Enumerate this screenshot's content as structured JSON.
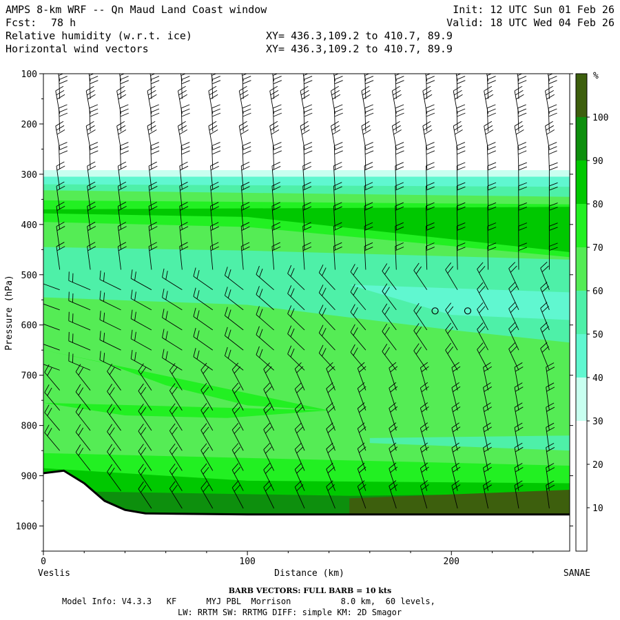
{
  "header": {
    "title": "AMPS 8-km WRF -- Qn Maud Land Coast window",
    "fcst_label": "Fcst:",
    "fcst_value": "78 h",
    "init": "Init: 12 UTC Sun 01 Feb 26",
    "valid": "Valid: 18 UTC Wed 04 Feb 26",
    "field1": "Relative humidity (w.r.t. ice)",
    "field2": "Horizontal wind vectors",
    "xy1": "XY= 436.3,109.2 to 410.7, 89.9",
    "xy2": "XY= 436.3,109.2 to 410.7, 89.9"
  },
  "footer": {
    "barb_note": "BARB VECTORS:  FULL BARB = 10 kts",
    "model_line1": "Model Info: V4.3.3   KF      MYJ PBL  Morrison          8.0 km,  60 levels,",
    "model_line2": "LW: RRTM SW: RRTMG   DIFF: simple KM: 2D Smagor"
  },
  "chart_data": {
    "type": "cross-section contour (filled) with wind barbs",
    "title": "Relative humidity (w.r.t. ice); Horizontal wind vectors",
    "xlabel": "Distance (km)",
    "ylabel": "Pressure (hPa)",
    "xlim": [
      0,
      258
    ],
    "ylim": [
      1050,
      100
    ],
    "x_ticks": [
      0,
      100,
      200
    ],
    "y_ticks": [
      100,
      200,
      300,
      400,
      500,
      600,
      700,
      800,
      900,
      1000
    ],
    "x_endpoints": {
      "left": "Veslis",
      "right": "SANAE"
    },
    "colorbar": {
      "unit": "%",
      "ticks": [
        10,
        20,
        30,
        40,
        50,
        60,
        70,
        80,
        90,
        100
      ],
      "bins": [
        {
          "min": 0,
          "max": 30,
          "color": "#ffffff"
        },
        {
          "min": 30,
          "max": 40,
          "color": "#c8fff0"
        },
        {
          "min": 40,
          "max": 50,
          "color": "#60f7d0"
        },
        {
          "min": 50,
          "max": 60,
          "color": "#4ef0a8"
        },
        {
          "min": 60,
          "max": 70,
          "color": "#55ec55"
        },
        {
          "min": 70,
          "max": 80,
          "color": "#22f022"
        },
        {
          "min": 80,
          "max": 90,
          "color": "#00c800"
        },
        {
          "min": 90,
          "max": 100,
          "color": "#0d8f0d"
        },
        {
          "min": 100,
          "max": 110,
          "color": "#3d5f0d"
        }
      ]
    },
    "terrain_pressure_hpa": [
      {
        "km": 0,
        "p": 895
      },
      {
        "km": 10,
        "p": 890
      },
      {
        "km": 20,
        "p": 915
      },
      {
        "km": 30,
        "p": 950
      },
      {
        "km": 40,
        "p": 968
      },
      {
        "km": 50,
        "p": 975
      },
      {
        "km": 100,
        "p": 977
      },
      {
        "km": 258,
        "p": 977
      }
    ],
    "rh_layers": [
      {
        "rh": 35,
        "top": [
          {
            "km": 0,
            "p": 292
          },
          {
            "km": 258,
            "p": 292
          }
        ],
        "bottom": [
          {
            "km": 0,
            "p": 1050
          },
          {
            "km": 258,
            "p": 1050
          }
        ]
      },
      {
        "rh": 45,
        "top": [
          {
            "km": 0,
            "p": 305
          },
          {
            "km": 258,
            "p": 305
          }
        ],
        "bottom": [
          {
            "km": 0,
            "p": 1050
          },
          {
            "km": 258,
            "p": 1050
          }
        ]
      },
      {
        "rh": 55,
        "top": [
          {
            "km": 0,
            "p": 320
          },
          {
            "km": 258,
            "p": 325
          }
        ],
        "bottom": [
          {
            "km": 0,
            "p": 1050
          },
          {
            "km": 258,
            "p": 1050
          }
        ]
      },
      {
        "rh": 65,
        "top": [
          {
            "km": 0,
            "p": 332
          },
          {
            "km": 258,
            "p": 345
          }
        ],
        "bottom": [
          {
            "km": 0,
            "p": 1050
          },
          {
            "km": 258,
            "p": 1050
          }
        ]
      },
      {
        "rh": 75,
        "top": [
          {
            "km": 0,
            "p": 352
          },
          {
            "km": 258,
            "p": 360
          }
        ],
        "bottom": [
          {
            "km": 0,
            "p": 395
          },
          {
            "km": 100,
            "p": 405
          },
          {
            "km": 258,
            "p": 465
          }
        ]
      },
      {
        "rh": 85,
        "top": [
          {
            "km": 0,
            "p": 370
          },
          {
            "km": 258,
            "p": 365
          }
        ],
        "bottom": [
          {
            "km": 0,
            "p": 378
          },
          {
            "km": 100,
            "p": 385
          },
          {
            "km": 258,
            "p": 455
          }
        ]
      },
      {
        "rh": 55,
        "top": [
          {
            "km": 0,
            "p": 445
          },
          {
            "km": 100,
            "p": 452
          },
          {
            "km": 258,
            "p": 470
          }
        ],
        "bottom": [
          {
            "km": 0,
            "p": 545
          },
          {
            "km": 100,
            "p": 560
          },
          {
            "km": 200,
            "p": 610
          },
          {
            "km": 258,
            "p": 635
          }
        ]
      },
      {
        "rh": 45,
        "top": [
          {
            "km": 150,
            "p": 520
          },
          {
            "km": 258,
            "p": 535
          }
        ],
        "bottom": [
          {
            "km": 150,
            "p": 520
          },
          {
            "km": 200,
            "p": 580
          },
          {
            "km": 258,
            "p": 590
          }
        ]
      },
      {
        "rh": 75,
        "top": [
          {
            "km": 0,
            "p": 650
          },
          {
            "km": 30,
            "p": 675
          },
          {
            "km": 60,
            "p": 720
          },
          {
            "km": 100,
            "p": 760
          },
          {
            "km": 140,
            "p": 770
          }
        ],
        "bottom": [
          {
            "km": 140,
            "p": 770
          },
          {
            "km": 90,
            "p": 785
          },
          {
            "km": 40,
            "p": 780
          },
          {
            "km": 0,
            "p": 755
          }
        ]
      },
      {
        "rh": 55,
        "top": [
          {
            "km": 160,
            "p": 825
          },
          {
            "km": 258,
            "p": 820
          }
        ],
        "bottom": [
          {
            "km": 160,
            "p": 835
          },
          {
            "km": 258,
            "p": 850
          }
        ]
      },
      {
        "rh": 75,
        "top": [
          {
            "km": 0,
            "p": 855
          },
          {
            "km": 258,
            "p": 880
          }
        ],
        "bottom": [
          {
            "km": 0,
            "p": 1050
          },
          {
            "km": 258,
            "p": 1050
          }
        ]
      },
      {
        "rh": 85,
        "top": [
          {
            "km": 0,
            "p": 885
          },
          {
            "km": 100,
            "p": 910
          },
          {
            "km": 258,
            "p": 915
          }
        ],
        "bottom": [
          {
            "km": 0,
            "p": 1050
          },
          {
            "km": 258,
            "p": 1050
          }
        ]
      },
      {
        "rh": 95,
        "top": [
          {
            "km": 0,
            "p": 930
          },
          {
            "km": 150,
            "p": 940
          },
          {
            "km": 258,
            "p": 935
          }
        ],
        "bottom": [
          {
            "km": 0,
            "p": 1050
          },
          {
            "km": 258,
            "p": 1050
          }
        ]
      },
      {
        "rh": 105,
        "top": [
          {
            "km": 150,
            "p": 945
          },
          {
            "km": 258,
            "p": 928
          }
        ],
        "bottom": [
          {
            "km": 150,
            "p": 1050
          },
          {
            "km": 258,
            "p": 1050
          }
        ]
      }
    ],
    "calm_wind_points": [
      {
        "km": 192,
        "p": 572
      },
      {
        "km": 208,
        "p": 572
      }
    ],
    "wind_columns_km": [
      8,
      23,
      38,
      53,
      68,
      83,
      98,
      113,
      128,
      143,
      158,
      173,
      188,
      203,
      218,
      233,
      248
    ],
    "wind_levels_hpa": [
      115,
      150,
      180,
      215,
      250,
      290,
      330,
      370,
      410,
      450,
      490,
      530,
      570,
      610,
      650,
      690,
      730,
      770,
      810,
      850,
      890,
      930,
      965
    ]
  }
}
